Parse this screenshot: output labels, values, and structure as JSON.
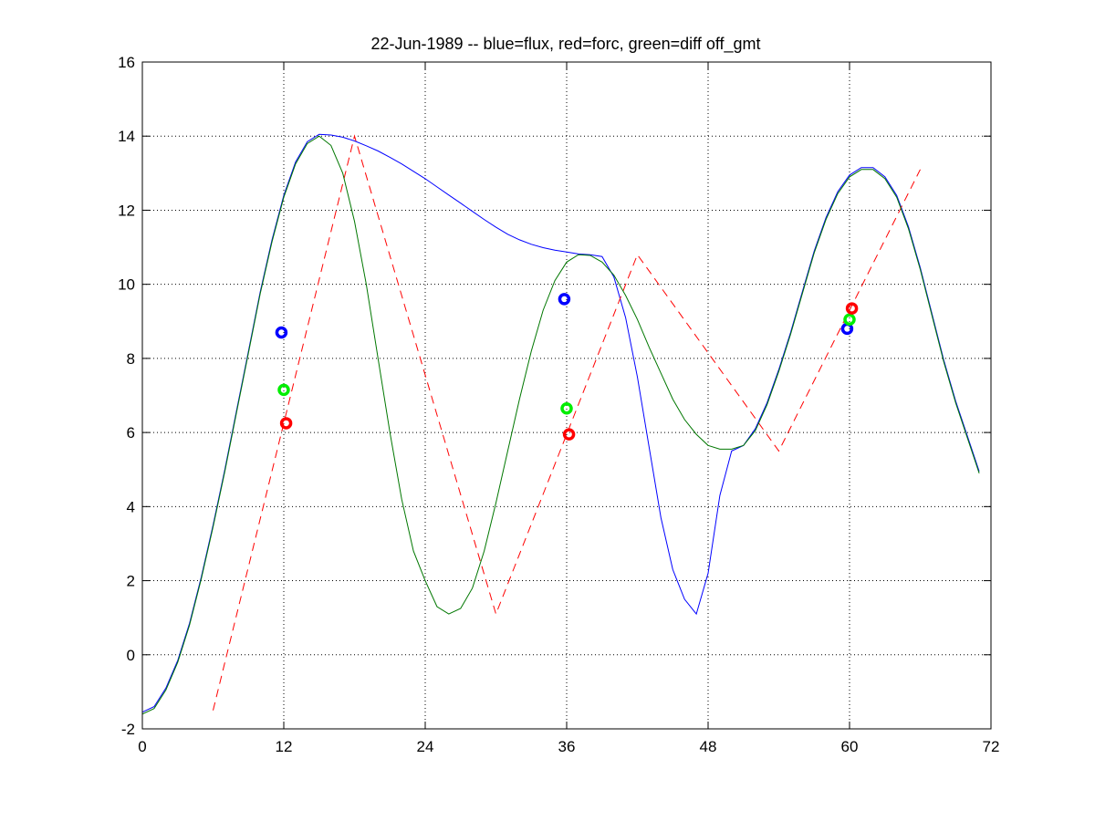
{
  "chart_data": {
    "type": "line",
    "title": "22-Jun-1989 -- blue=flux, red=forc, green=diff off_gmt",
    "xlabel": "",
    "ylabel": "",
    "xlim": [
      0,
      72
    ],
    "ylim": [
      -2,
      16
    ],
    "xticks": [
      0,
      12,
      24,
      36,
      48,
      60,
      72
    ],
    "yticks": [
      -2,
      0,
      2,
      4,
      6,
      8,
      10,
      12,
      14,
      16
    ],
    "grid": true,
    "series": [
      {
        "color": "#0000ff",
        "style": "solid",
        "points": [
          [
            0,
            -1.55
          ],
          [
            1,
            -1.4
          ],
          [
            2,
            -0.9
          ],
          [
            3,
            -0.15
          ],
          [
            4,
            0.85
          ],
          [
            5,
            2.1
          ],
          [
            6,
            3.5
          ],
          [
            7,
            5.0
          ],
          [
            8,
            6.6
          ],
          [
            9,
            8.2
          ],
          [
            10,
            9.8
          ],
          [
            11,
            11.2
          ],
          [
            12,
            12.4
          ],
          [
            13,
            13.3
          ],
          [
            14,
            13.85
          ],
          [
            15,
            14.05
          ],
          [
            16,
            14.03
          ],
          [
            17,
            13.97
          ],
          [
            18,
            13.87
          ],
          [
            19,
            13.74
          ],
          [
            20,
            13.6
          ],
          [
            21,
            13.43
          ],
          [
            22,
            13.25
          ],
          [
            23,
            13.05
          ],
          [
            24,
            12.85
          ],
          [
            25,
            12.63
          ],
          [
            26,
            12.41
          ],
          [
            27,
            12.19
          ],
          [
            28,
            11.97
          ],
          [
            29,
            11.75
          ],
          [
            30,
            11.54
          ],
          [
            31,
            11.35
          ],
          [
            32,
            11.2
          ],
          [
            33,
            11.08
          ],
          [
            34,
            10.99
          ],
          [
            35,
            10.92
          ],
          [
            36,
            10.87
          ],
          [
            37,
            10.82
          ],
          [
            38,
            10.8
          ],
          [
            39,
            10.75
          ],
          [
            40,
            10.2
          ],
          [
            41,
            9.1
          ],
          [
            42,
            7.5
          ],
          [
            43,
            5.6
          ],
          [
            44,
            3.7
          ],
          [
            45,
            2.3
          ],
          [
            46,
            1.5
          ],
          [
            47,
            1.1
          ],
          [
            48,
            2.2
          ],
          [
            49,
            4.3
          ],
          [
            50,
            5.5
          ],
          [
            51,
            5.65
          ],
          [
            52,
            6.1
          ],
          [
            53,
            6.8
          ],
          [
            54,
            7.7
          ],
          [
            55,
            8.7
          ],
          [
            56,
            9.8
          ],
          [
            57,
            10.9
          ],
          [
            58,
            11.8
          ],
          [
            59,
            12.5
          ],
          [
            60,
            12.95
          ],
          [
            61,
            13.15
          ],
          [
            62,
            13.15
          ],
          [
            63,
            12.9
          ],
          [
            64,
            12.4
          ],
          [
            65,
            11.55
          ],
          [
            66,
            10.45
          ],
          [
            67,
            9.2
          ],
          [
            68,
            7.95
          ],
          [
            69,
            6.85
          ],
          [
            70,
            5.9
          ],
          [
            71,
            4.95
          ]
        ]
      },
      {
        "color": "#ff0000",
        "style": "dashed",
        "points": [
          [
            6,
            -1.5
          ],
          [
            18,
            14.0
          ],
          [
            30,
            1.1
          ],
          [
            42,
            10.8
          ],
          [
            54,
            5.5
          ],
          [
            66,
            13.1
          ]
        ]
      },
      {
        "color": "#007700",
        "style": "solid",
        "points": [
          [
            0,
            -1.6
          ],
          [
            1,
            -1.45
          ],
          [
            2,
            -0.95
          ],
          [
            3,
            -0.2
          ],
          [
            4,
            0.8
          ],
          [
            5,
            2.05
          ],
          [
            6,
            3.45
          ],
          [
            7,
            4.95
          ],
          [
            8,
            6.55
          ],
          [
            9,
            8.15
          ],
          [
            10,
            9.75
          ],
          [
            11,
            11.15
          ],
          [
            12,
            12.35
          ],
          [
            13,
            13.25
          ],
          [
            14,
            13.8
          ],
          [
            15,
            14.0
          ],
          [
            16,
            13.75
          ],
          [
            17,
            13.0
          ],
          [
            18,
            11.7
          ],
          [
            19,
            10.0
          ],
          [
            20,
            8.0
          ],
          [
            21,
            6.0
          ],
          [
            22,
            4.2
          ],
          [
            23,
            2.8
          ],
          [
            24,
            2.0
          ],
          [
            25,
            1.3
          ],
          [
            26,
            1.1
          ],
          [
            27,
            1.25
          ],
          [
            28,
            1.8
          ],
          [
            29,
            2.8
          ],
          [
            30,
            4.1
          ],
          [
            31,
            5.5
          ],
          [
            32,
            6.9
          ],
          [
            33,
            8.2
          ],
          [
            34,
            9.3
          ],
          [
            35,
            10.1
          ],
          [
            36,
            10.6
          ],
          [
            37,
            10.8
          ],
          [
            38,
            10.78
          ],
          [
            39,
            10.6
          ],
          [
            40,
            10.25
          ],
          [
            41,
            9.7
          ],
          [
            42,
            9.05
          ],
          [
            43,
            8.3
          ],
          [
            44,
            7.6
          ],
          [
            45,
            6.9
          ],
          [
            46,
            6.35
          ],
          [
            47,
            5.95
          ],
          [
            48,
            5.65
          ],
          [
            49,
            5.55
          ],
          [
            50,
            5.55
          ],
          [
            51,
            5.65
          ],
          [
            52,
            6.05
          ],
          [
            53,
            6.75
          ],
          [
            54,
            7.65
          ],
          [
            55,
            8.65
          ],
          [
            56,
            9.75
          ],
          [
            57,
            10.85
          ],
          [
            58,
            11.75
          ],
          [
            59,
            12.45
          ],
          [
            60,
            12.9
          ],
          [
            61,
            13.1
          ],
          [
            62,
            13.1
          ],
          [
            63,
            12.85
          ],
          [
            64,
            12.35
          ],
          [
            65,
            11.5
          ],
          [
            66,
            10.4
          ],
          [
            67,
            9.15
          ],
          [
            68,
            7.9
          ],
          [
            69,
            6.8
          ],
          [
            70,
            5.85
          ],
          [
            71,
            4.9
          ]
        ]
      }
    ],
    "markers": [
      {
        "color": "#0000ff",
        "points": [
          [
            11.8,
            8.7
          ],
          [
            35.8,
            9.6
          ],
          [
            59.8,
            8.8
          ]
        ]
      },
      {
        "color": "#00ee00",
        "points": [
          [
            12.0,
            7.15
          ],
          [
            36.0,
            6.65
          ],
          [
            60.0,
            9.05
          ]
        ]
      },
      {
        "color": "#ff0000",
        "points": [
          [
            12.2,
            6.25
          ],
          [
            36.2,
            5.95
          ],
          [
            60.2,
            9.35
          ]
        ]
      }
    ]
  }
}
